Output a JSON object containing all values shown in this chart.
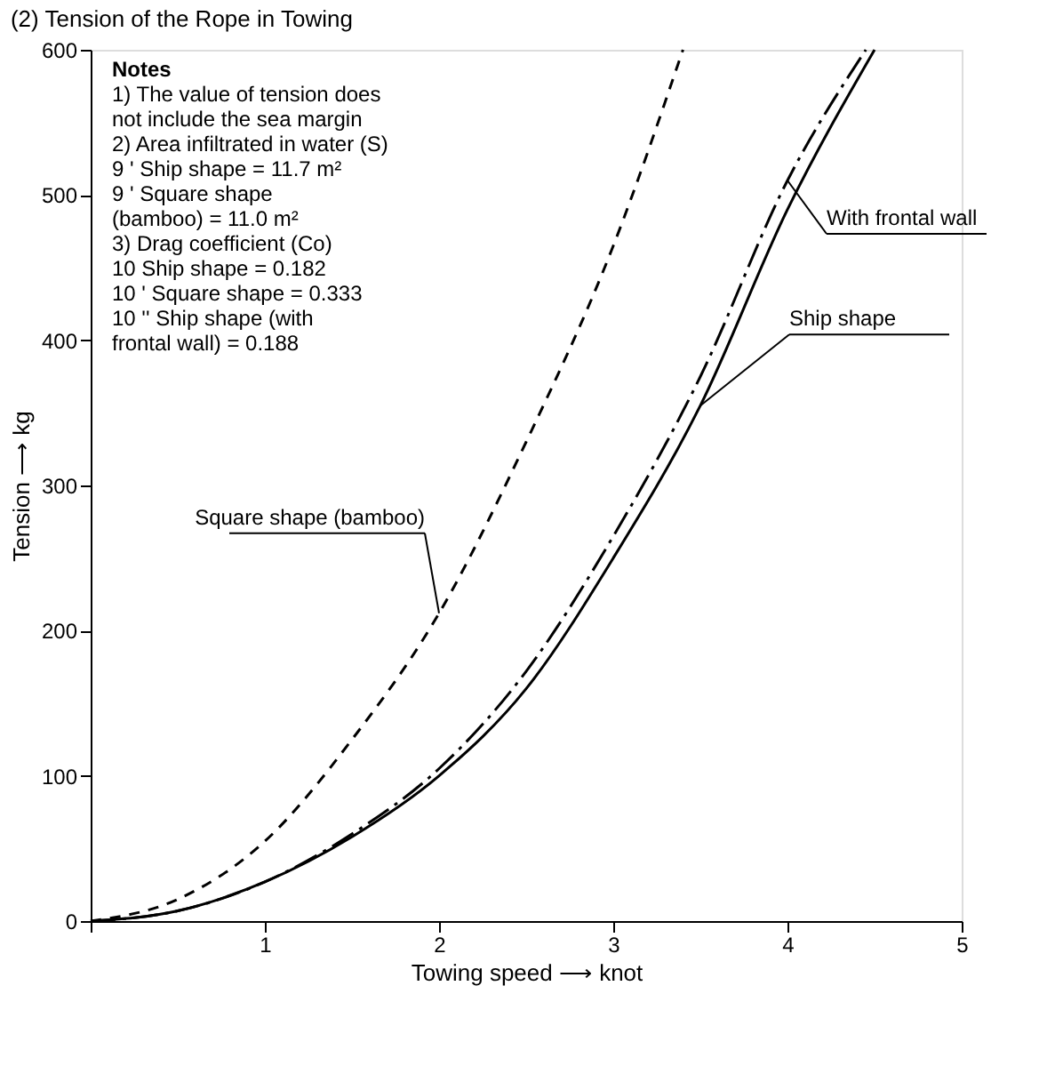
{
  "chart_data": {
    "type": "line",
    "title": "(2) Tension of the Rope in Towing",
    "xlabel": "Towing speed ⟶ knot",
    "ylabel": "Tension ⟶ kg",
    "x": [
      0,
      0.5,
      1,
      1.5,
      2,
      2.5,
      3,
      3.5,
      4,
      4.5
    ],
    "series": [
      {
        "name": "Ship shape",
        "color": "#000000",
        "line_style": "solid",
        "values": [
          0,
          7,
          27,
          58,
          100,
          160,
          250,
          355,
          490,
          600
        ]
      },
      {
        "name": "Square shape (bamboo)",
        "color": "#000000",
        "line_style": "dashed",
        "x": [
          0,
          0.5,
          1,
          1.5,
          2,
          2.5,
          3,
          3.4
        ],
        "values": [
          0,
          15,
          55,
          125,
          212,
          330,
          465,
          600
        ]
      },
      {
        "name": "With frontal wall",
        "color": "#000000",
        "line_style": "dashdot",
        "x": [
          0,
          0.5,
          1,
          1.5,
          2,
          2.5,
          3,
          3.5,
          4,
          4.45
        ],
        "values": [
          0,
          7,
          27,
          60,
          105,
          172,
          265,
          375,
          510,
          600
        ]
      }
    ],
    "annotations": [
      "Notes",
      "1) The value of tension does",
      "   not include the sea margin",
      "2) Area infiltrated in water (S)",
      "    9 ' Ship shape = 11.7 m²",
      "    9 ' Square shape",
      "        (bamboo) = 11.0 m²",
      "3) Drag coefficient (Co)",
      "   10  Ship shape = 0.182",
      "   10 ' Square shape = 0.333",
      "   10 '' Ship shape (with",
      "        frontal wall) = 0.188"
    ],
    "xlim": [
      0,
      5
    ],
    "ylim": [
      0,
      600
    ],
    "xticks": [
      {
        "value": 0,
        "label": null
      },
      1,
      2,
      3,
      4,
      5
    ],
    "yticks": [
      0,
      100,
      200,
      300,
      400,
      500,
      600
    ],
    "grid": false,
    "legend": false
  }
}
